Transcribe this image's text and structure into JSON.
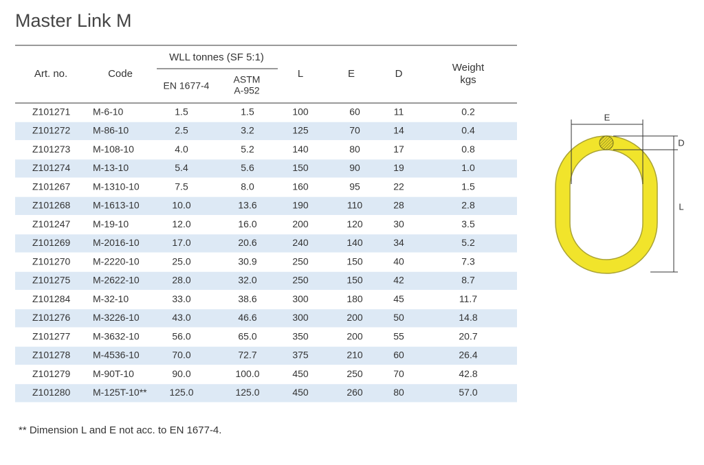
{
  "title": "Master Link M",
  "table": {
    "header": {
      "art_no": "Art. no.",
      "code": "Code",
      "wll": "WLL tonnes (SF 5:1)",
      "en": "EN 1677-4",
      "astm": [
        "ASTM",
        "A-952"
      ],
      "l": "L",
      "e": "E",
      "d": "D",
      "weight": [
        "Weight",
        "kgs"
      ]
    },
    "rows": [
      [
        "Z101271",
        "M-6-10",
        "1.5",
        "1.5",
        "100",
        "60",
        "11",
        "0.2"
      ],
      [
        "Z101272",
        "M-86-10",
        "2.5",
        "3.2",
        "125",
        "70",
        "14",
        "0.4"
      ],
      [
        "Z101273",
        "M-108-10",
        "4.0",
        "5.2",
        "140",
        "80",
        "17",
        "0.8"
      ],
      [
        "Z101274",
        "M-13-10",
        "5.4",
        "5.6",
        "150",
        "90",
        "19",
        "1.0"
      ],
      [
        "Z101267",
        "M-1310-10",
        "7.5",
        "8.0",
        "160",
        "95",
        "22",
        "1.5"
      ],
      [
        "Z101268",
        "M-1613-10",
        "10.0",
        "13.6",
        "190",
        "110",
        "28",
        "2.8"
      ],
      [
        "Z101247",
        "M-19-10",
        "12.0",
        "16.0",
        "200",
        "120",
        "30",
        "3.5"
      ],
      [
        "Z101269",
        "M-2016-10",
        "17.0",
        "20.6",
        "240",
        "140",
        "34",
        "5.2"
      ],
      [
        "Z101270",
        "M-2220-10",
        "25.0",
        "30.9",
        "250",
        "150",
        "40",
        "7.3"
      ],
      [
        "Z101275",
        "M-2622-10",
        "28.0",
        "32.0",
        "250",
        "150",
        "42",
        "8.7"
      ],
      [
        "Z101284",
        "M-32-10",
        "33.0",
        "38.6",
        "300",
        "180",
        "45",
        "11.7"
      ],
      [
        "Z101276",
        "M-3226-10",
        "43.0",
        "46.6",
        "300",
        "200",
        "50",
        "14.8"
      ],
      [
        "Z101277",
        "M-3632-10",
        "56.0",
        "65.0",
        "350",
        "200",
        "55",
        "20.7"
      ],
      [
        "Z101278",
        "M-4536-10",
        "70.0",
        "72.7",
        "375",
        "210",
        "60",
        "26.4"
      ],
      [
        "Z101279",
        "M-90T-10",
        "90.0",
        "100.0",
        "450",
        "250",
        "70",
        "42.8"
      ],
      [
        "Z101280",
        "M-125T-10**",
        "125.0",
        "125.0",
        "450",
        "260",
        "80",
        "57.0"
      ]
    ]
  },
  "footnote": "** Dimension L and E not acc. to EN 1677-4.",
  "diagram": {
    "labels": {
      "e": "E",
      "d": "D",
      "l": "L"
    }
  }
}
